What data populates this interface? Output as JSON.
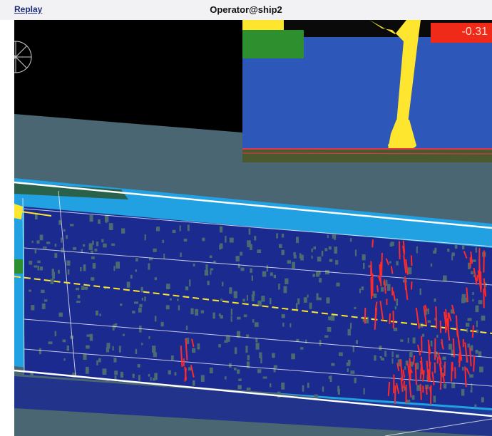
{
  "window": {
    "app_label": "Replay",
    "title": "Operator@ship2"
  },
  "inset": {
    "value": "-0.31"
  },
  "colors": {
    "titlebar": "#f2f2f4",
    "sky_black": "#000000",
    "water": "#4a6673",
    "lane_deep": "#1a2a8e",
    "lane_edge": "#2f9be0",
    "inset_field": "#2d57b8",
    "inset_green": "#2e8f2f",
    "marker_yellow": "#ffe62e",
    "value_red": "#ef2a18",
    "obstacle_red": "#ff2a2a"
  },
  "icons": {
    "compass": "compass-icon",
    "arrow": "arrow-left-icon"
  }
}
